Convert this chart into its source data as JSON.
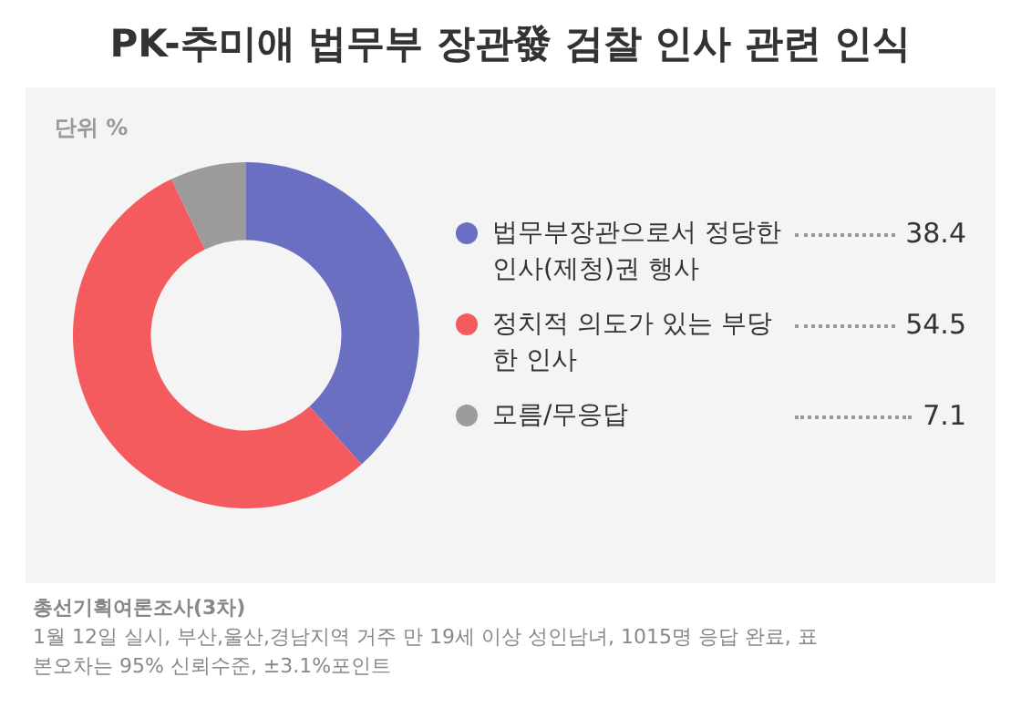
{
  "chart_data": {
    "type": "donut",
    "title": "PK-추미애 법무부 장관發 검찰 인사 관련 인식",
    "subtitle": "단위 %",
    "categories": [
      "법무부장관으로서 정당한 인사(제청)권 행사",
      "정치적 의도가 있는 부당한 인사",
      "모름/무응답"
    ],
    "values": [
      38.4,
      54.5,
      7.1
    ],
    "colors": [
      "#6b6fc2",
      "#f45b5f",
      "#9b9b9b"
    ],
    "data_labels": true,
    "legend": "right",
    "annotations": [
      "총선기획여론조사(3차)",
      "1월 12일 실시, 부산,울산,경남지역 거주 만 19세 이상 성인남녀, 1015명 응답 완료, 표본오차는 95% 신뢰수준, ±3.1%포인트"
    ]
  }
}
